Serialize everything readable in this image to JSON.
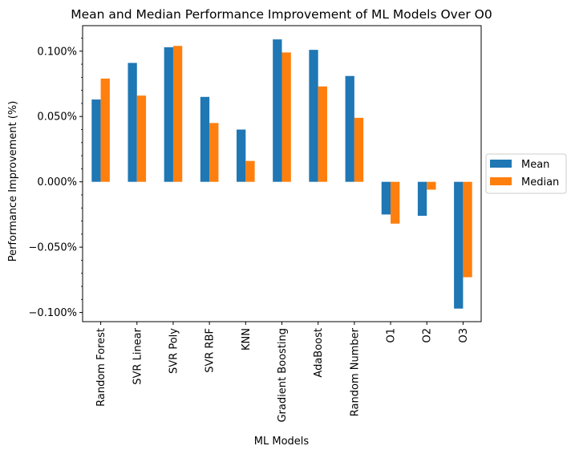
{
  "chart_data": {
    "type": "bar",
    "title": "Mean and Median Performance Improvement of ML Models Over O0",
    "xlabel": "ML Models",
    "ylabel": "Performance Improvement (%)",
    "ylim": [
      -0.107,
      0.1195
    ],
    "yticks": [
      {
        "value": 0.1,
        "label": "0.100%"
      },
      {
        "value": 0.05,
        "label": "0.050%"
      },
      {
        "value": 0.0,
        "label": "0.000%"
      },
      {
        "value": -0.05,
        "label": "−0.050%"
      },
      {
        "value": -0.1,
        "label": "−0.100%"
      }
    ],
    "categories": [
      "Random Forest",
      "SVR Linear",
      "SVR Poly",
      "SVR RBF",
      "KNN",
      "Gradient Boosting",
      "AdaBoost",
      "Random Number",
      "O1",
      "O2",
      "O3"
    ],
    "series": [
      {
        "name": "Mean",
        "color": "#1f77b4",
        "values": [
          0.063,
          0.091,
          0.103,
          0.065,
          0.04,
          0.109,
          0.101,
          0.081,
          -0.025,
          -0.026,
          -0.097
        ]
      },
      {
        "name": "Median",
        "color": "#ff7f0e",
        "values": [
          0.079,
          0.066,
          0.104,
          0.045,
          0.016,
          0.099,
          0.073,
          0.049,
          -0.032,
          -0.006,
          -0.073
        ]
      }
    ],
    "legend_position": "outside-right",
    "grid": false
  }
}
